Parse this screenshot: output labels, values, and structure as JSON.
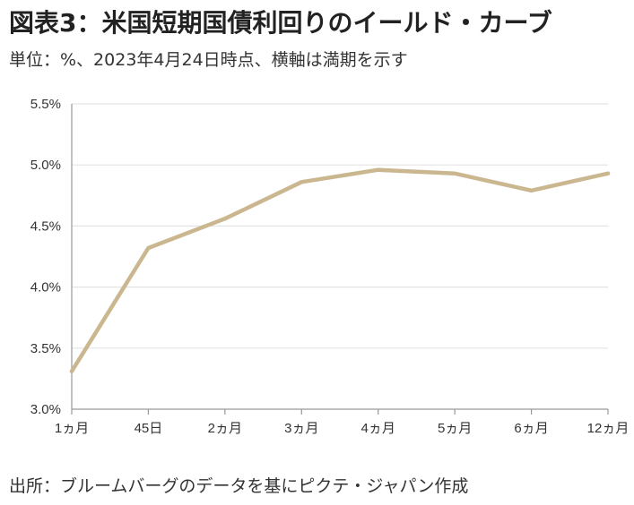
{
  "header": {
    "title": "図表3：米国短期国債利回りのイールド・カーブ",
    "subtitle": "単位：%、2023年4月24日時点、横軸は満期を示す"
  },
  "footer": {
    "source": "出所：ブルームバーグのデータを基にピクテ・ジャパン作成"
  },
  "chart_data": {
    "type": "line",
    "title": "図表3：米国短期国債利回りのイールド・カーブ",
    "subtitle": "単位：%、2023年4月24日時点、横軸は満期を示す",
    "xlabel": "",
    "ylabel": "",
    "categories": [
      "1ヵ月",
      "45日",
      "2ヵ月",
      "3ヵ月",
      "4ヵ月",
      "5ヵ月",
      "6ヵ月",
      "12ヵ月"
    ],
    "series": [
      {
        "values": [
          3.31,
          4.32,
          4.56,
          4.86,
          4.96,
          4.93,
          4.79,
          4.93
        ],
        "color": "#cbb78f"
      }
    ],
    "ylim": [
      3.0,
      5.5
    ],
    "yticks": [
      3.0,
      3.5,
      4.0,
      4.5,
      5.0,
      5.5
    ],
    "ytick_labels": [
      "3.0%",
      "3.5%",
      "4.0%",
      "4.5%",
      "5.0%",
      "5.5%"
    ],
    "grid": true,
    "grid_color": "#e4e4e4",
    "axis_color": "#999999",
    "legend": "none"
  }
}
